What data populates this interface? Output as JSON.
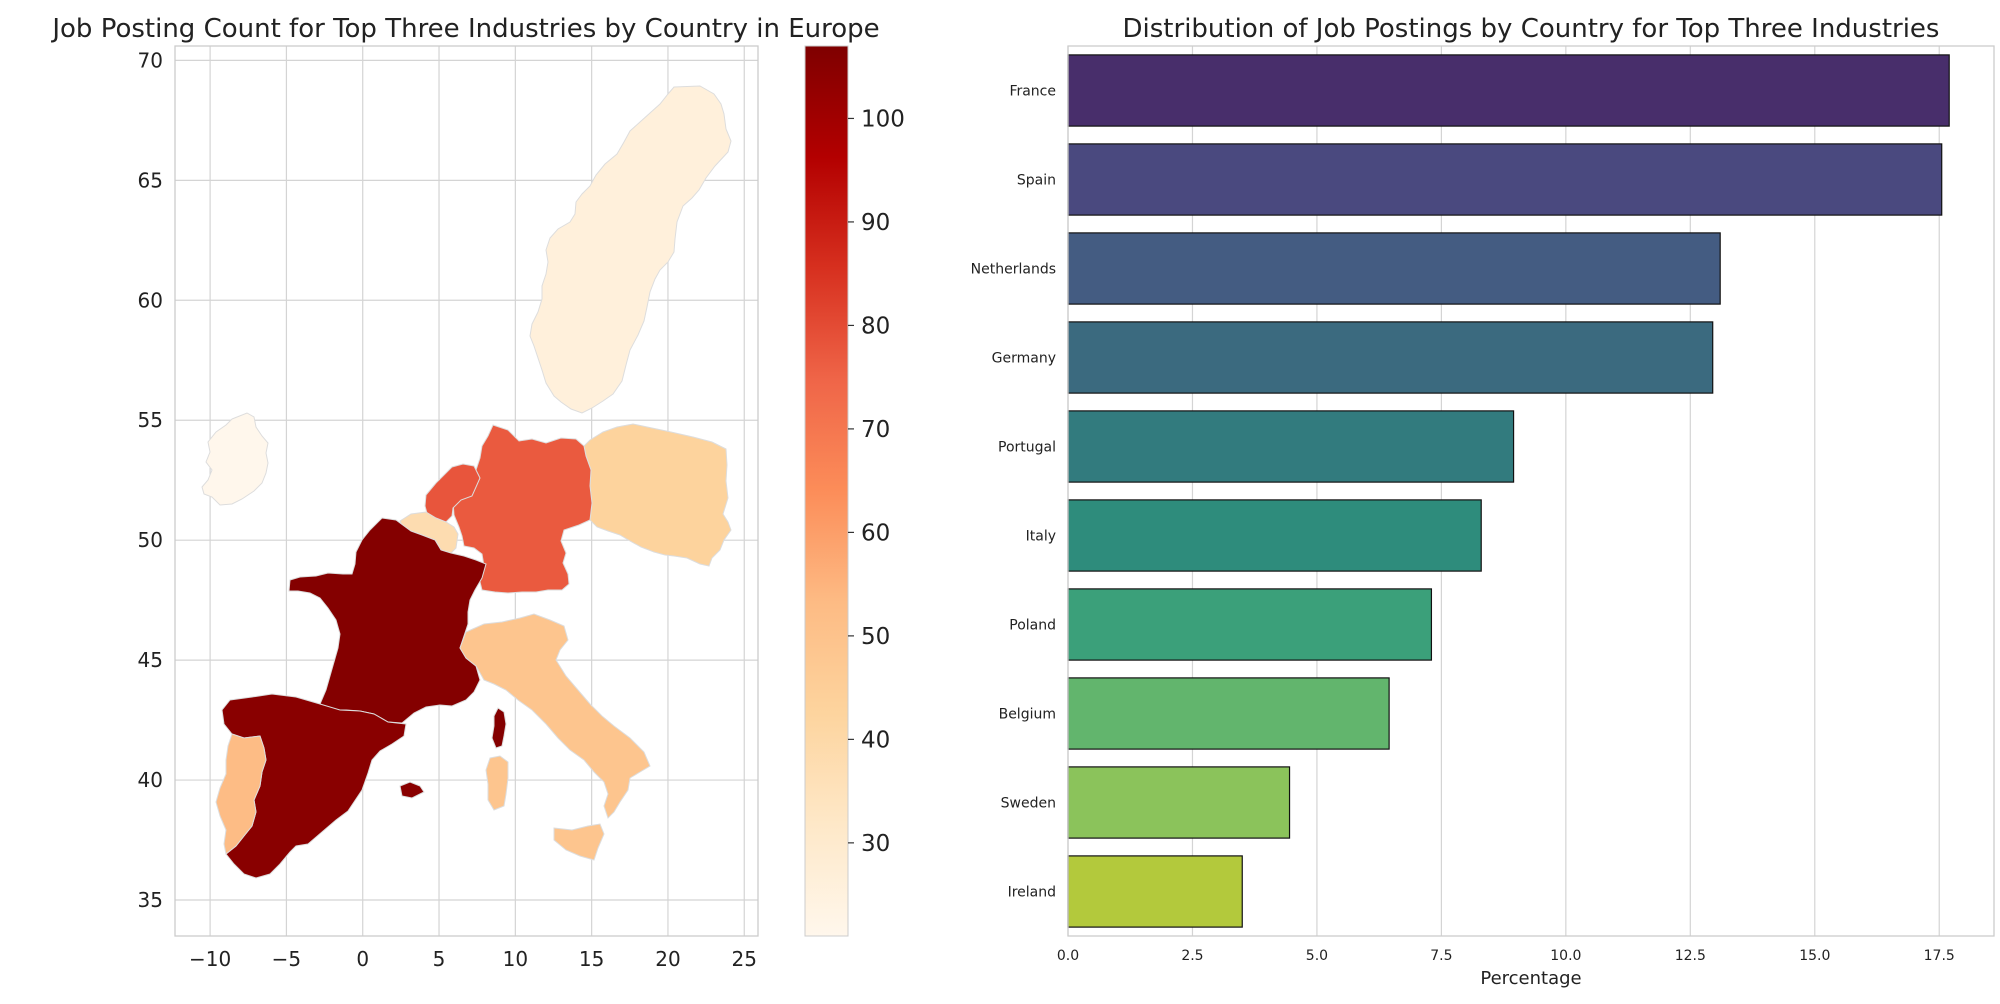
{
  "chart_data": [
    {
      "type": "choropleth",
      "title": "Job Posting Count for Top Three Industries by Country in Europe",
      "xlim": [
        -12.3,
        25.9
      ],
      "ylim": [
        33.5,
        70.6
      ],
      "xticks": [
        -10,
        -5,
        0,
        5,
        10,
        15,
        20,
        25
      ],
      "xtick_labels": [
        "−10",
        "−5",
        "0",
        "5",
        "10",
        "15",
        "20",
        "25"
      ],
      "yticks": [
        35,
        40,
        45,
        50,
        55,
        60,
        65,
        70
      ],
      "ytick_labels": [
        "35",
        "40",
        "45",
        "50",
        "55",
        "60",
        "65",
        "70"
      ],
      "colorbar": {
        "cmap": "OrRd",
        "range": [
          21,
          107
        ],
        "ticks": [
          30,
          40,
          50,
          60,
          70,
          80,
          90,
          100
        ],
        "tick_labels": [
          "30",
          "40",
          "50",
          "60",
          "70",
          "80",
          "90",
          "100"
        ]
      },
      "regions": [
        {
          "name": "France",
          "value": 106
        },
        {
          "name": "Spain",
          "value": 105
        },
        {
          "name": "Netherlands",
          "value": 78
        },
        {
          "name": "Germany",
          "value": 77
        },
        {
          "name": "Portugal",
          "value": 53
        },
        {
          "name": "Italy",
          "value": 49
        },
        {
          "name": "Poland",
          "value": 43
        },
        {
          "name": "Belgium",
          "value": 38
        },
        {
          "name": "Sweden",
          "value": 26
        },
        {
          "name": "Ireland",
          "value": 21
        }
      ]
    },
    {
      "type": "bar",
      "orientation": "horizontal",
      "title": "Distribution of Job Postings by Country for Top Three Industries",
      "xlabel": "Percentage",
      "ylabel": "",
      "xlim": [
        0,
        18.6
      ],
      "xticks": [
        0,
        2.5,
        5,
        7.5,
        10,
        12.5,
        15,
        17.5
      ],
      "xtick_labels": [
        "0.0",
        "2.5",
        "5.0",
        "7.5",
        "10.0",
        "12.5",
        "15.0",
        "17.5"
      ],
      "categories": [
        "France",
        "Spain",
        "Netherlands",
        "Germany",
        "Portugal",
        "Italy",
        "Poland",
        "Belgium",
        "Sweden",
        "Ireland"
      ],
      "values": [
        17.7,
        17.55,
        13.1,
        12.95,
        8.95,
        8.3,
        7.3,
        6.45,
        4.45,
        3.5
      ],
      "colors": [
        "#482e6b",
        "#4a497f",
        "#445c82",
        "#3b6a7f",
        "#327b7e",
        "#2e8c7c",
        "#3ba07a",
        "#62b56d",
        "#8bc35b",
        "#b3c93c"
      ]
    }
  ]
}
